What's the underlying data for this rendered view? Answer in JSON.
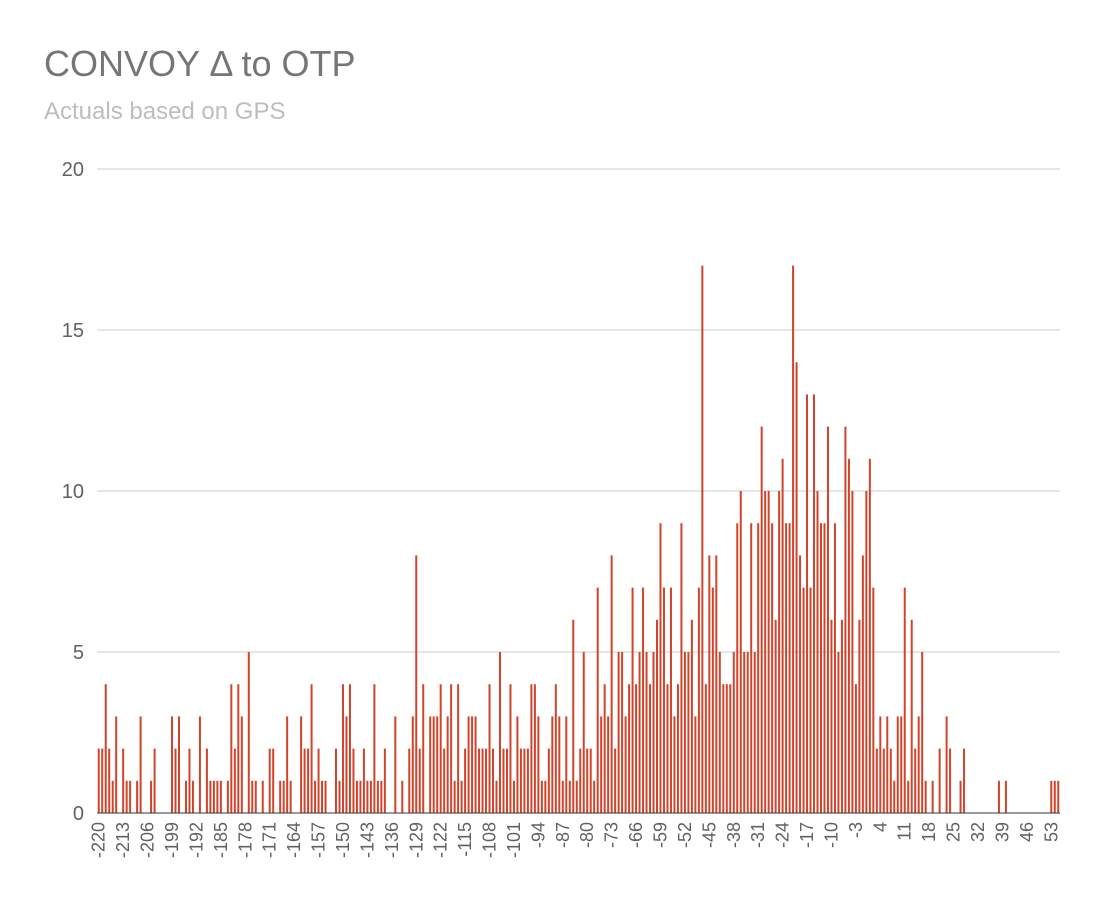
{
  "chart_data": {
    "type": "bar",
    "title": "CONVOY Δ to OTP",
    "subtitle": "Actuals based on GPS",
    "color": "#d0442c",
    "grid": true,
    "ylim": [
      0,
      20
    ],
    "yticks": [
      0,
      5,
      10,
      15,
      20
    ],
    "categories": [
      "-220",
      null,
      null,
      null,
      null,
      null,
      null,
      "-213",
      null,
      null,
      null,
      null,
      null,
      null,
      "-206",
      null,
      null,
      null,
      null,
      null,
      null,
      "-199",
      null,
      null,
      null,
      null,
      null,
      null,
      "-192",
      null,
      null,
      null,
      null,
      null,
      null,
      "-185",
      null,
      null,
      null,
      null,
      null,
      null,
      "-178",
      null,
      null,
      null,
      null,
      null,
      null,
      "-171",
      null,
      null,
      null,
      null,
      null,
      null,
      "-164",
      null,
      null,
      null,
      null,
      null,
      null,
      "-157",
      null,
      null,
      null,
      null,
      null,
      null,
      "-150",
      null,
      null,
      null,
      null,
      null,
      null,
      "-143",
      null,
      null,
      null,
      null,
      null,
      null,
      "-136",
      null,
      null,
      null,
      null,
      null,
      null,
      "-129",
      null,
      null,
      null,
      null,
      null,
      null,
      "-122",
      null,
      null,
      null,
      null,
      null,
      null,
      "-115",
      null,
      null,
      null,
      null,
      null,
      null,
      "-108",
      null,
      null,
      null,
      null,
      null,
      null,
      "-101",
      null,
      null,
      null,
      null,
      null,
      null,
      "-94",
      null,
      null,
      null,
      null,
      null,
      null,
      "-87",
      null,
      null,
      null,
      null,
      null,
      null,
      "-80",
      null,
      null,
      null,
      null,
      null,
      null,
      "-73",
      null,
      null,
      null,
      null,
      null,
      null,
      "-66",
      null,
      null,
      null,
      null,
      null,
      null,
      "-59",
      null,
      null,
      null,
      null,
      null,
      null,
      "-52",
      null,
      null,
      null,
      null,
      null,
      null,
      "-45",
      null,
      null,
      null,
      null,
      null,
      null,
      "-38",
      null,
      null,
      null,
      null,
      null,
      null,
      "-31",
      null,
      null,
      null,
      null,
      null,
      null,
      "-24",
      null,
      null,
      null,
      null,
      null,
      null,
      "-17",
      null,
      null,
      null,
      null,
      null,
      null,
      "-10",
      null,
      null,
      null,
      null,
      null,
      null,
      "-3",
      null,
      null,
      null,
      null,
      null,
      null,
      "4",
      null,
      null,
      null,
      null,
      null,
      null,
      "11",
      null,
      null,
      null,
      null,
      null,
      null,
      "18",
      null,
      null,
      null,
      null,
      null,
      null,
      "25",
      null,
      null,
      null,
      null,
      null,
      null,
      "32",
      null,
      null,
      null,
      null,
      null,
      null,
      "39",
      null,
      null,
      null,
      null,
      null,
      null,
      "46",
      null,
      null,
      null,
      null,
      null,
      null,
      "53",
      null,
      null
    ],
    "values": [
      2,
      2,
      4,
      2,
      1,
      3,
      0,
      2,
      1,
      1,
      0,
      1,
      3,
      0,
      0,
      1,
      2,
      0,
      0,
      0,
      0,
      3,
      2,
      3,
      0,
      1,
      2,
      1,
      0,
      3,
      0,
      2,
      1,
      1,
      1,
      1,
      0,
      1,
      4,
      2,
      4,
      3,
      0,
      5,
      1,
      1,
      0,
      1,
      0,
      2,
      2,
      0,
      1,
      1,
      3,
      1,
      0,
      0,
      3,
      2,
      2,
      4,
      1,
      2,
      1,
      1,
      0,
      0,
      2,
      1,
      4,
      3,
      4,
      2,
      1,
      1,
      2,
      1,
      1,
      4,
      1,
      1,
      2,
      0,
      0,
      3,
      0,
      1,
      0,
      2,
      3,
      8,
      2,
      4,
      0,
      3,
      3,
      3,
      4,
      2,
      3,
      4,
      1,
      4,
      1,
      2,
      3,
      3,
      3,
      2,
      2,
      2,
      4,
      2,
      1,
      5,
      2,
      2,
      4,
      1,
      3,
      2,
      2,
      2,
      4,
      4,
      3,
      1,
      1,
      2,
      3,
      4,
      3,
      1,
      3,
      1,
      6,
      1,
      2,
      5,
      2,
      2,
      1,
      7,
      3,
      4,
      3,
      8,
      2,
      5,
      5,
      3,
      4,
      7,
      4,
      5,
      7,
      5,
      4,
      5,
      6,
      9,
      7,
      4,
      7,
      3,
      4,
      9,
      5,
      5,
      6,
      3,
      7,
      17,
      4,
      8,
      7,
      8,
      5,
      4,
      4,
      4,
      5,
      9,
      10,
      5,
      5,
      9,
      5,
      9,
      12,
      10,
      10,
      9,
      6,
      10,
      11,
      9,
      9,
      17,
      14,
      8,
      7,
      13,
      7,
      13,
      10,
      9,
      9,
      12,
      6,
      9,
      5,
      6,
      12,
      11,
      10,
      4,
      6,
      8,
      10,
      11,
      7,
      2,
      3,
      2,
      3,
      2,
      1,
      3,
      3,
      7,
      1,
      6,
      2,
      3,
      5,
      1,
      0,
      1,
      0,
      2,
      0,
      3,
      2,
      0,
      0,
      1,
      2,
      0,
      0,
      0,
      0,
      0,
      0,
      0,
      0,
      0,
      1,
      0,
      1,
      0,
      0,
      0,
      0,
      0,
      0,
      0,
      0,
      0,
      0,
      0,
      0,
      1,
      1,
      1
    ]
  }
}
